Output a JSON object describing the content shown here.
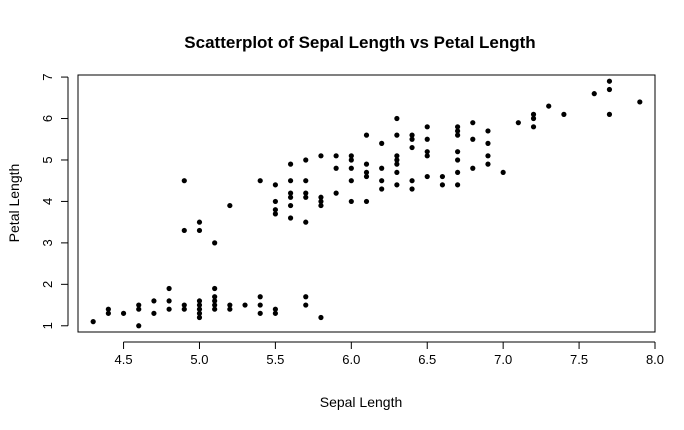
{
  "chart_data": {
    "type": "scatter",
    "title": "Scatterplot of Sepal Length vs Petal Length",
    "xlabel": "Sepal Length",
    "ylabel": "Petal Length",
    "xlim": [
      4.2,
      8.0
    ],
    "ylim": [
      0.85,
      7.05
    ],
    "x_ticks": [
      4.5,
      5.0,
      5.5,
      6.0,
      6.5,
      7.0,
      7.5,
      8.0
    ],
    "y_ticks": [
      1,
      2,
      3,
      4,
      5,
      6,
      7
    ],
    "x_tick_labels": [
      "4.5",
      "5.0",
      "5.5",
      "6.0",
      "6.5",
      "7.0",
      "7.5",
      "8.0"
    ],
    "y_tick_labels": [
      "1",
      "2",
      "3",
      "4",
      "5",
      "6",
      "7"
    ],
    "grid": false,
    "series": [
      {
        "points": [
          [
            4.3,
            1.1
          ],
          [
            4.4,
            1.3
          ],
          [
            4.4,
            1.4
          ],
          [
            4.5,
            1.3
          ],
          [
            4.6,
            1.0
          ],
          [
            4.6,
            1.4
          ],
          [
            4.6,
            1.5
          ],
          [
            4.7,
            1.3
          ],
          [
            4.7,
            1.6
          ],
          [
            4.8,
            1.4
          ],
          [
            4.8,
            1.6
          ],
          [
            4.8,
            1.9
          ],
          [
            4.9,
            1.4
          ],
          [
            4.9,
            1.5
          ],
          [
            5.0,
            1.2
          ],
          [
            5.0,
            1.3
          ],
          [
            5.0,
            1.4
          ],
          [
            5.0,
            1.5
          ],
          [
            5.0,
            1.6
          ],
          [
            5.1,
            1.4
          ],
          [
            5.1,
            1.5
          ],
          [
            5.1,
            1.6
          ],
          [
            5.1,
            1.7
          ],
          [
            5.1,
            1.9
          ],
          [
            5.2,
            1.4
          ],
          [
            5.2,
            1.5
          ],
          [
            5.3,
            1.5
          ],
          [
            5.4,
            1.3
          ],
          [
            5.4,
            1.5
          ],
          [
            5.4,
            1.7
          ],
          [
            5.5,
            1.3
          ],
          [
            5.5,
            1.4
          ],
          [
            5.7,
            1.5
          ],
          [
            5.7,
            1.7
          ],
          [
            5.8,
            1.2
          ],
          [
            4.9,
            3.3
          ],
          [
            4.9,
            4.5
          ],
          [
            5.0,
            3.3
          ],
          [
            5.0,
            3.5
          ],
          [
            5.1,
            3.0
          ],
          [
            5.2,
            3.9
          ],
          [
            5.4,
            4.5
          ],
          [
            5.5,
            3.7
          ],
          [
            5.5,
            3.8
          ],
          [
            5.5,
            4.0
          ],
          [
            5.5,
            4.4
          ],
          [
            5.6,
            3.6
          ],
          [
            5.6,
            3.9
          ],
          [
            5.6,
            4.1
          ],
          [
            5.6,
            4.2
          ],
          [
            5.6,
            4.5
          ],
          [
            5.6,
            4.9
          ],
          [
            5.7,
            3.5
          ],
          [
            5.7,
            4.1
          ],
          [
            5.7,
            4.2
          ],
          [
            5.7,
            4.5
          ],
          [
            5.7,
            5.0
          ],
          [
            5.8,
            3.9
          ],
          [
            5.8,
            4.0
          ],
          [
            5.8,
            4.1
          ],
          [
            5.8,
            5.1
          ],
          [
            5.9,
            4.2
          ],
          [
            5.9,
            4.8
          ],
          [
            5.9,
            5.1
          ],
          [
            6.0,
            4.0
          ],
          [
            6.0,
            4.5
          ],
          [
            6.0,
            4.8
          ],
          [
            6.0,
            5.0
          ],
          [
            6.0,
            5.1
          ],
          [
            6.1,
            4.0
          ],
          [
            6.1,
            4.6
          ],
          [
            6.1,
            4.7
          ],
          [
            6.1,
            4.9
          ],
          [
            6.1,
            5.6
          ],
          [
            6.2,
            4.3
          ],
          [
            6.2,
            4.5
          ],
          [
            6.2,
            4.8
          ],
          [
            6.2,
            5.4
          ],
          [
            6.3,
            4.4
          ],
          [
            6.3,
            4.7
          ],
          [
            6.3,
            4.9
          ],
          [
            6.3,
            5.0
          ],
          [
            6.3,
            5.1
          ],
          [
            6.3,
            5.6
          ],
          [
            6.3,
            6.0
          ],
          [
            6.4,
            4.3
          ],
          [
            6.4,
            4.5
          ],
          [
            6.4,
            5.3
          ],
          [
            6.4,
            5.5
          ],
          [
            6.4,
            5.6
          ],
          [
            6.5,
            4.6
          ],
          [
            6.5,
            5.1
          ],
          [
            6.5,
            5.2
          ],
          [
            6.5,
            5.5
          ],
          [
            6.5,
            5.8
          ],
          [
            6.6,
            4.4
          ],
          [
            6.6,
            4.6
          ],
          [
            6.7,
            4.4
          ],
          [
            6.7,
            4.7
          ],
          [
            6.7,
            5.0
          ],
          [
            6.7,
            5.2
          ],
          [
            6.7,
            5.6
          ],
          [
            6.7,
            5.7
          ],
          [
            6.7,
            5.8
          ],
          [
            6.8,
            4.8
          ],
          [
            6.8,
            5.5
          ],
          [
            6.8,
            5.9
          ],
          [
            6.9,
            4.9
          ],
          [
            6.9,
            5.1
          ],
          [
            6.9,
            5.4
          ],
          [
            6.9,
            5.7
          ],
          [
            7.0,
            4.7
          ],
          [
            7.1,
            5.9
          ],
          [
            7.2,
            5.8
          ],
          [
            7.2,
            6.0
          ],
          [
            7.2,
            6.1
          ],
          [
            7.3,
            6.3
          ],
          [
            7.4,
            6.1
          ],
          [
            7.6,
            6.6
          ],
          [
            7.7,
            6.1
          ],
          [
            7.7,
            6.7
          ],
          [
            7.7,
            6.9
          ],
          [
            7.9,
            6.4
          ]
        ]
      }
    ]
  }
}
